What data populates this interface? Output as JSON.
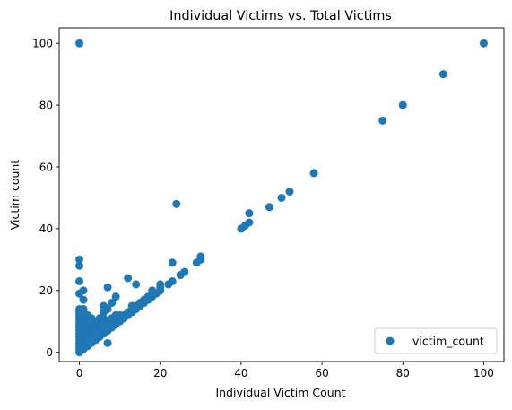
{
  "chart_data": {
    "type": "scatter",
    "title": "Individual Victims vs. Total Victims",
    "xlabel": "Individual Victim Count",
    "ylabel": "Victim count",
    "xlim": [
      -5,
      105
    ],
    "ylim": [
      -3,
      105
    ],
    "xticks": [
      0,
      20,
      40,
      60,
      80,
      100
    ],
    "yticks": [
      0,
      20,
      40,
      60,
      80,
      100
    ],
    "xtick_labels": [
      "0",
      "20",
      "40",
      "60",
      "80",
      "100"
    ],
    "ytick_labels": [
      "0",
      "20",
      "40",
      "60",
      "80",
      "100"
    ],
    "grid": false,
    "legend_position": "lower-right",
    "series": [
      {
        "name": "victim_count",
        "color": "#1f77b4",
        "points": [
          {
            "x": 0,
            "y": 0
          },
          {
            "x": 0,
            "y": 1
          },
          {
            "x": 0,
            "y": 2
          },
          {
            "x": 0,
            "y": 3
          },
          {
            "x": 0,
            "y": 4
          },
          {
            "x": 0,
            "y": 5
          },
          {
            "x": 0,
            "y": 6
          },
          {
            "x": 0,
            "y": 7
          },
          {
            "x": 0,
            "y": 8
          },
          {
            "x": 0,
            "y": 9
          },
          {
            "x": 0,
            "y": 10
          },
          {
            "x": 0,
            "y": 11
          },
          {
            "x": 0,
            "y": 12
          },
          {
            "x": 0,
            "y": 13
          },
          {
            "x": 0,
            "y": 14
          },
          {
            "x": 0,
            "y": 19
          },
          {
            "x": 0,
            "y": 23
          },
          {
            "x": 0,
            "y": 28
          },
          {
            "x": 0,
            "y": 30
          },
          {
            "x": 0,
            "y": 100
          },
          {
            "x": 1,
            "y": 1
          },
          {
            "x": 1,
            "y": 2
          },
          {
            "x": 1,
            "y": 3
          },
          {
            "x": 1,
            "y": 4
          },
          {
            "x": 1,
            "y": 5
          },
          {
            "x": 1,
            "y": 6
          },
          {
            "x": 1,
            "y": 7
          },
          {
            "x": 1,
            "y": 8
          },
          {
            "x": 1,
            "y": 9
          },
          {
            "x": 1,
            "y": 10
          },
          {
            "x": 1,
            "y": 11
          },
          {
            "x": 1,
            "y": 12
          },
          {
            "x": 1,
            "y": 13
          },
          {
            "x": 1,
            "y": 14
          },
          {
            "x": 1,
            "y": 17
          },
          {
            "x": 1,
            "y": 20
          },
          {
            "x": 2,
            "y": 2
          },
          {
            "x": 2,
            "y": 3
          },
          {
            "x": 2,
            "y": 4
          },
          {
            "x": 2,
            "y": 5
          },
          {
            "x": 2,
            "y": 6
          },
          {
            "x": 2,
            "y": 7
          },
          {
            "x": 2,
            "y": 8
          },
          {
            "x": 2,
            "y": 9
          },
          {
            "x": 2,
            "y": 10
          },
          {
            "x": 2,
            "y": 12
          },
          {
            "x": 3,
            "y": 3
          },
          {
            "x": 3,
            "y": 4
          },
          {
            "x": 3,
            "y": 5
          },
          {
            "x": 3,
            "y": 6
          },
          {
            "x": 3,
            "y": 7
          },
          {
            "x": 3,
            "y": 8
          },
          {
            "x": 3,
            "y": 9
          },
          {
            "x": 3,
            "y": 10
          },
          {
            "x": 3,
            "y": 11
          },
          {
            "x": 4,
            "y": 4
          },
          {
            "x": 4,
            "y": 5
          },
          {
            "x": 4,
            "y": 6
          },
          {
            "x": 4,
            "y": 7
          },
          {
            "x": 4,
            "y": 8
          },
          {
            "x": 4,
            "y": 9
          },
          {
            "x": 4,
            "y": 10
          },
          {
            "x": 5,
            "y": 5
          },
          {
            "x": 5,
            "y": 6
          },
          {
            "x": 5,
            "y": 7
          },
          {
            "x": 5,
            "y": 8
          },
          {
            "x": 5,
            "y": 9
          },
          {
            "x": 5,
            "y": 10
          },
          {
            "x": 5,
            "y": 11
          },
          {
            "x": 6,
            "y": 6
          },
          {
            "x": 6,
            "y": 7
          },
          {
            "x": 6,
            "y": 8
          },
          {
            "x": 6,
            "y": 9
          },
          {
            "x": 6,
            "y": 10
          },
          {
            "x": 6,
            "y": 11
          },
          {
            "x": 6,
            "y": 13
          },
          {
            "x": 6,
            "y": 15
          },
          {
            "x": 7,
            "y": 3
          },
          {
            "x": 7,
            "y": 7
          },
          {
            "x": 7,
            "y": 8
          },
          {
            "x": 7,
            "y": 9
          },
          {
            "x": 7,
            "y": 10
          },
          {
            "x": 7,
            "y": 14
          },
          {
            "x": 7,
            "y": 21
          },
          {
            "x": 8,
            "y": 8
          },
          {
            "x": 8,
            "y": 9
          },
          {
            "x": 8,
            "y": 10
          },
          {
            "x": 8,
            "y": 11
          },
          {
            "x": 8,
            "y": 16
          },
          {
            "x": 9,
            "y": 9
          },
          {
            "x": 9,
            "y": 10
          },
          {
            "x": 9,
            "y": 11
          },
          {
            "x": 9,
            "y": 12
          },
          {
            "x": 9,
            "y": 18
          },
          {
            "x": 10,
            "y": 10
          },
          {
            "x": 10,
            "y": 11
          },
          {
            "x": 10,
            "y": 12
          },
          {
            "x": 11,
            "y": 11
          },
          {
            "x": 11,
            "y": 12
          },
          {
            "x": 12,
            "y": 12
          },
          {
            "x": 12,
            "y": 13
          },
          {
            "x": 12,
            "y": 24
          },
          {
            "x": 13,
            "y": 13
          },
          {
            "x": 13,
            "y": 14
          },
          {
            "x": 13,
            "y": 15
          },
          {
            "x": 14,
            "y": 14
          },
          {
            "x": 14,
            "y": 15
          },
          {
            "x": 14,
            "y": 22
          },
          {
            "x": 15,
            "y": 15
          },
          {
            "x": 15,
            "y": 16
          },
          {
            "x": 16,
            "y": 16
          },
          {
            "x": 16,
            "y": 17
          },
          {
            "x": 17,
            "y": 17
          },
          {
            "x": 17,
            "y": 18
          },
          {
            "x": 18,
            "y": 18
          },
          {
            "x": 18,
            "y": 19
          },
          {
            "x": 18,
            "y": 20
          },
          {
            "x": 19,
            "y": 19
          },
          {
            "x": 20,
            "y": 20
          },
          {
            "x": 20,
            "y": 21
          },
          {
            "x": 20,
            "y": 22
          },
          {
            "x": 22,
            "y": 22
          },
          {
            "x": 23,
            "y": 23
          },
          {
            "x": 23,
            "y": 29
          },
          {
            "x": 24,
            "y": 48
          },
          {
            "x": 25,
            "y": 25
          },
          {
            "x": 26,
            "y": 26
          },
          {
            "x": 29,
            "y": 29
          },
          {
            "x": 30,
            "y": 30
          },
          {
            "x": 30,
            "y": 31
          },
          {
            "x": 40,
            "y": 40
          },
          {
            "x": 41,
            "y": 41
          },
          {
            "x": 42,
            "y": 42
          },
          {
            "x": 42,
            "y": 45
          },
          {
            "x": 47,
            "y": 47
          },
          {
            "x": 50,
            "y": 50
          },
          {
            "x": 52,
            "y": 52
          },
          {
            "x": 58,
            "y": 58
          },
          {
            "x": 75,
            "y": 75
          },
          {
            "x": 80,
            "y": 80
          },
          {
            "x": 90,
            "y": 90
          },
          {
            "x": 100,
            "y": 100
          }
        ]
      }
    ]
  }
}
